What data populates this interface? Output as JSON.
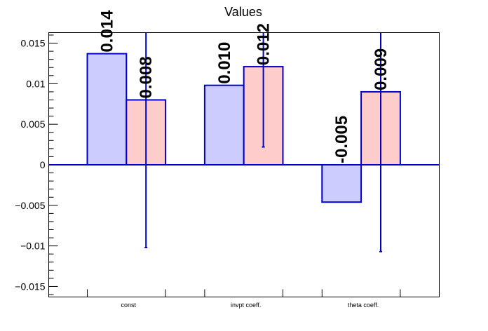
{
  "chart_data": {
    "type": "bar",
    "title": "Values",
    "xlabel": "",
    "ylabel": "",
    "categories": [
      "const",
      "invpt coeff.",
      "theta coeff."
    ],
    "ylim": [
      -0.0163,
      0.0163
    ],
    "yticks": [
      {
        "value": 0.015,
        "label": "0.015"
      },
      {
        "value": 0.01,
        "label": "0.01"
      },
      {
        "value": 0.005,
        "label": "0.005"
      },
      {
        "value": 0,
        "label": "0"
      },
      {
        "value": -0.005,
        "label": "−0.005"
      },
      {
        "value": -0.01,
        "label": "−0.01"
      },
      {
        "value": -0.015,
        "label": "−0.015"
      }
    ],
    "grid": false,
    "series": [
      {
        "values": [
          0.0137,
          0.0098,
          -0.0046
        ],
        "labels": [
          "0.014",
          "0.010",
          "-0.005"
        ],
        "fill": "#ccccff",
        "stroke": "#0000cc"
      },
      {
        "values": [
          0.008,
          0.0121,
          0.009
        ],
        "labels": [
          "0.008",
          "0.012",
          "0.009"
        ],
        "error_low": [
          -0.0102,
          0.0022,
          -0.0107
        ],
        "error_high": [
          0.0163,
          0.0163,
          0.0163
        ],
        "fill": "#ffcccc",
        "stroke": "#0000cc"
      }
    ]
  }
}
